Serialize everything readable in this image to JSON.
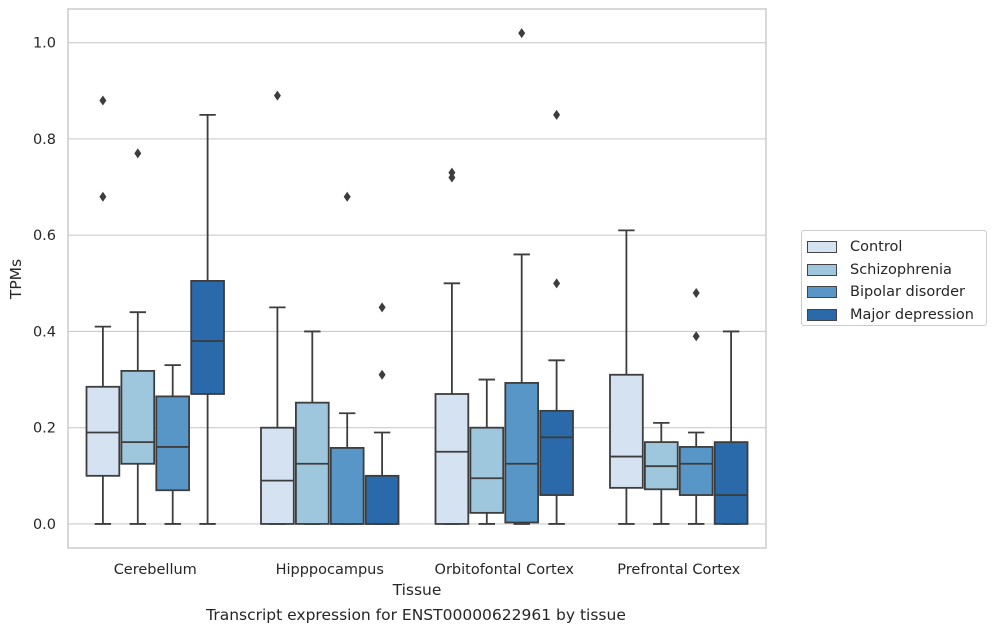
{
  "caption": "Transcript expression for ENST00000622961 by tissue",
  "chart_data": {
    "type": "box",
    "xlabel": "Tissue",
    "ylabel": "TPMs",
    "ylim": [
      -0.05,
      1.07
    ],
    "yticks": [
      "0.0",
      "0.2",
      "0.4",
      "0.6",
      "0.8",
      "1.0"
    ],
    "grid": "horizontal",
    "legend_position": "right",
    "categories": [
      "Cerebellum",
      "Hipppocampus",
      "Orbitofontal Cortex",
      "Prefrontal Cortex"
    ],
    "series": [
      {
        "name": "Control",
        "color": "#d4e2f2",
        "boxes": [
          {
            "min": 0.0,
            "q1": 0.1,
            "median": 0.19,
            "q3": 0.285,
            "max": 0.41,
            "outliers": [
              0.68,
              0.88
            ]
          },
          {
            "min": 0.0,
            "q1": 0.0,
            "median": 0.09,
            "q3": 0.2,
            "max": 0.45,
            "outliers": [
              0.89
            ]
          },
          {
            "min": 0.0,
            "q1": 0.0,
            "median": 0.15,
            "q3": 0.27,
            "max": 0.5,
            "outliers": [
              0.72,
              0.73
            ]
          },
          {
            "min": 0.0,
            "q1": 0.075,
            "median": 0.14,
            "q3": 0.31,
            "max": 0.61,
            "outliers": []
          }
        ]
      },
      {
        "name": "Schizophrenia",
        "color": "#9ec7de",
        "boxes": [
          {
            "min": 0.0,
            "q1": 0.125,
            "median": 0.17,
            "q3": 0.318,
            "max": 0.44,
            "outliers": [
              0.77
            ]
          },
          {
            "min": 0.0,
            "q1": 0.0,
            "median": 0.125,
            "q3": 0.252,
            "max": 0.4,
            "outliers": []
          },
          {
            "min": 0.0,
            "q1": 0.023,
            "median": 0.095,
            "q3": 0.2,
            "max": 0.3,
            "outliers": []
          },
          {
            "min": 0.0,
            "q1": 0.072,
            "median": 0.12,
            "q3": 0.17,
            "max": 0.21,
            "outliers": []
          }
        ]
      },
      {
        "name": "Bipolar disorder",
        "color": "#5796c6",
        "boxes": [
          {
            "min": 0.0,
            "q1": 0.07,
            "median": 0.16,
            "q3": 0.265,
            "max": 0.33,
            "outliers": []
          },
          {
            "min": 0.0,
            "q1": 0.0,
            "median": 0.0,
            "q3": 0.158,
            "max": 0.23,
            "outliers": [
              0.68
            ]
          },
          {
            "min": 0.0,
            "q1": 0.003,
            "median": 0.125,
            "q3": 0.293,
            "max": 0.56,
            "outliers": [
              1.02
            ]
          },
          {
            "min": 0.0,
            "q1": 0.06,
            "median": 0.125,
            "q3": 0.16,
            "max": 0.19,
            "outliers": [
              0.39,
              0.48
            ]
          }
        ]
      },
      {
        "name": "Major depression",
        "color": "#2a69aa",
        "boxes": [
          {
            "min": 0.0,
            "q1": 0.27,
            "median": 0.38,
            "q3": 0.505,
            "max": 0.85,
            "outliers": []
          },
          {
            "min": 0.0,
            "q1": 0.0,
            "median": 0.0,
            "q3": 0.1,
            "max": 0.19,
            "outliers": [
              0.31,
              0.45
            ]
          },
          {
            "min": 0.0,
            "q1": 0.06,
            "median": 0.18,
            "q3": 0.235,
            "max": 0.34,
            "outliers": [
              0.5,
              0.85
            ]
          },
          {
            "min": 0.0,
            "q1": 0.0,
            "median": 0.06,
            "q3": 0.17,
            "max": 0.4,
            "outliers": []
          }
        ]
      }
    ]
  }
}
